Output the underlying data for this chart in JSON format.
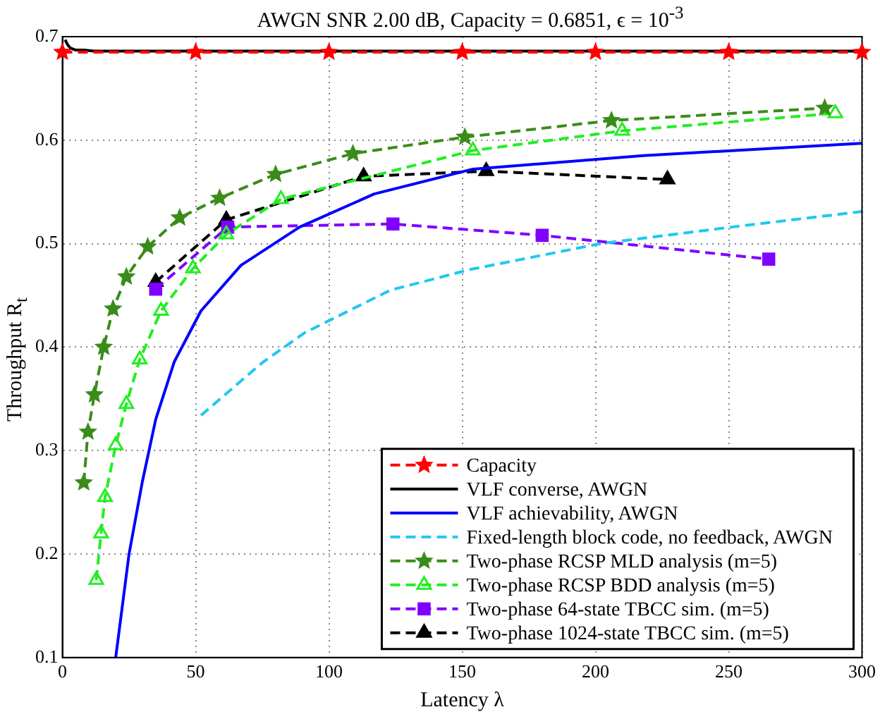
{
  "chart_data": {
    "type": "line",
    "title": "AWGN SNR 2.00 dB, Capacity = 0.6851, ϵ = 10$^{-3}$",
    "xlabel": "Latency λ",
    "ylabel": "Throughput R$_{t}$",
    "xlim": [
      0,
      300
    ],
    "xticks": [
      0,
      50,
      100,
      150,
      200,
      250,
      300
    ],
    "ylim": [
      0.1,
      0.7
    ],
    "yticks": [
      0.1,
      0.2,
      0.3,
      0.4,
      0.5,
      0.6,
      0.7
    ],
    "grid": true,
    "legend": "bottom right",
    "series": [
      {
        "name": "Capacity",
        "color": "#ff0000",
        "marker": "star",
        "line_style": "dashed",
        "x": [
          0,
          50,
          100,
          150,
          200,
          250,
          300
        ],
        "values": [
          0.685,
          0.685,
          0.685,
          0.685,
          0.685,
          0.685,
          0.685
        ]
      },
      {
        "name": "VLF converse, AWGN",
        "color": "#000000",
        "marker": "none",
        "line_style": "solid",
        "x": [
          1,
          2,
          3,
          5,
          8,
          12,
          20,
          300
        ],
        "values": [
          0.697,
          0.692,
          0.689,
          0.687,
          0.687,
          0.686,
          0.686,
          0.686
        ]
      },
      {
        "name": "VLF achievability, AWGN",
        "color": "#0000ff",
        "marker": "none",
        "line_style": "solid",
        "x": [
          20,
          25,
          30,
          35,
          42,
          52,
          67,
          89,
          117,
          154,
          218,
          300
        ],
        "values": [
          0.1,
          0.2,
          0.27,
          0.33,
          0.386,
          0.435,
          0.479,
          0.516,
          0.548,
          0.572,
          0.585,
          0.597
        ]
      },
      {
        "name": "Fixed-length block code, no feedback, AWGN",
        "color": "#1ec8f0",
        "marker": "none",
        "line_style": "dashed",
        "x": [
          52,
          61,
          75,
          91,
          123,
          153,
          202,
          251,
          300
        ],
        "values": [
          0.334,
          0.354,
          0.385,
          0.414,
          0.455,
          0.475,
          0.5,
          0.516,
          0.531
        ]
      },
      {
        "name": "Two-phase RCSP MLD analysis (m=5)",
        "color": "#3a8c1a",
        "marker": "star",
        "line_style": "dashed",
        "x": [
          8,
          9.6,
          12,
          15.5,
          19,
          24,
          32,
          44,
          59,
          80,
          109,
          151,
          206,
          286
        ],
        "values": [
          0.269,
          0.318,
          0.354,
          0.4,
          0.437,
          0.468,
          0.497,
          0.525,
          0.544,
          0.567,
          0.587,
          0.603,
          0.619,
          0.631
        ]
      },
      {
        "name": "Two-phase RCSP BDD analysis (m=5)",
        "color": "#22ee22",
        "marker": "triangle",
        "line_style": "dashed",
        "x": [
          12.7,
          14.5,
          16,
          20,
          24,
          29,
          37,
          49,
          61.5,
          82,
          154,
          210,
          290
        ],
        "values": [
          0.175,
          0.22,
          0.255,
          0.305,
          0.345,
          0.388,
          0.435,
          0.476,
          0.509,
          0.543,
          0.59,
          0.609,
          0.626
        ]
      },
      {
        "name": "Two-phase 64-state TBCC sim. (m=5)",
        "color": "#7f00ff",
        "marker": "square",
        "line_style": "dashed",
        "x": [
          35,
          62,
          124,
          180,
          265
        ],
        "values": [
          0.456,
          0.516,
          0.519,
          0.508,
          0.485
        ]
      },
      {
        "name": "Two-phase 1024-state TBCC sim. (m=5)",
        "color": "#000000",
        "marker": "triangle",
        "line_style": "dashed",
        "x": [
          35,
          61.5,
          113,
          159,
          227
        ],
        "values": [
          0.463,
          0.523,
          0.565,
          0.57,
          0.562
        ]
      }
    ]
  }
}
